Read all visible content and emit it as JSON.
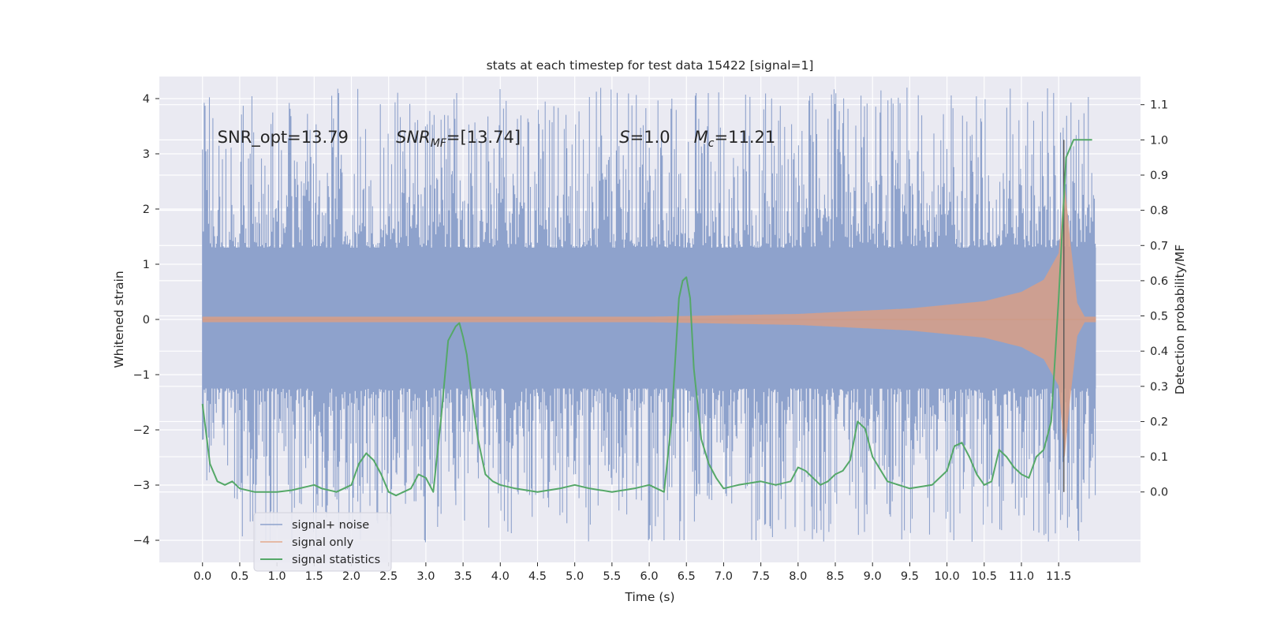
{
  "chart_data": {
    "type": "line",
    "title": "stats at each timestep for test data 15422 [signal=1]",
    "xlabel": "Time (s)",
    "ylabel": "Whitened strain",
    "ylabel_right": "Detection probability/MF",
    "xlim": [
      -0.58,
      12.6
    ],
    "ylim": [
      -4.4,
      4.4
    ],
    "ylim_right": [
      -0.2,
      1.18
    ],
    "x_ticks": [
      0.0,
      0.5,
      1.0,
      1.5,
      2.0,
      2.5,
      3.0,
      3.5,
      4.0,
      4.5,
      5.0,
      5.5,
      6.0,
      6.5,
      7.0,
      7.5,
      8.0,
      8.5,
      9.0,
      9.5,
      10.0,
      10.5,
      11.0,
      11.5
    ],
    "x_tick_labels": [
      "0.0",
      "0.5",
      "1.0",
      "1.5",
      "2.0",
      "2.5",
      "3.0",
      "3.5",
      "4.0",
      "4.5",
      "5.0",
      "5.5",
      "6.0",
      "6.5",
      "7.0",
      "7.5",
      "8.0",
      "8.5",
      "9.0",
      "9.5",
      "10.0",
      "10.5",
      "11.0",
      "11.5"
    ],
    "y_ticks": [
      -4,
      -3,
      -2,
      -1,
      0,
      1,
      2,
      3,
      4
    ],
    "y_tick_labels": [
      "−4",
      "−3",
      "−2",
      "−1",
      "0",
      "1",
      "2",
      "3",
      "4"
    ],
    "y_right_ticks": [
      0.0,
      0.1,
      0.2,
      0.3,
      0.4,
      0.5,
      0.6,
      0.7,
      0.8,
      0.9,
      1.0,
      1.1
    ],
    "y_right_tick_labels": [
      "0.0",
      "0.1",
      "0.2",
      "0.3",
      "0.4",
      "0.5",
      "0.6",
      "0.7",
      "0.8",
      "0.9",
      "1.0",
      "1.1"
    ],
    "grid": true,
    "legend_position": "lower-left",
    "annotations": [
      {
        "text": "SNR_opt=13.79",
        "x": 0.2,
        "y": 3.2
      },
      {
        "text": "SNR_MF=[13.74]",
        "x": 2.6,
        "y": 3.2
      },
      {
        "text": "S=1.0",
        "x": 5.6,
        "y": 3.2
      },
      {
        "text": "M_c=11.21",
        "x": 6.6,
        "y": 3.2
      }
    ],
    "vline": {
      "x": 11.57,
      "y_right_range": [
        0.0,
        1.0
      ]
    },
    "series": [
      {
        "name": "signal+ noise",
        "axis": "left",
        "color": "#8ea2cc",
        "kind": "strain",
        "x_range": [
          0.0,
          12.0
        ],
        "core_band": [
          -1.25,
          1.3
        ],
        "peak_range": [
          -4.0,
          4.1
        ]
      },
      {
        "name": "signal only",
        "axis": "left",
        "color": "#dd8452",
        "kind": "chirp",
        "x_range": [
          0.0,
          12.0
        ],
        "envelope": [
          [
            0.0,
            0.05
          ],
          [
            6.0,
            0.05
          ],
          [
            8.0,
            0.1
          ],
          [
            9.5,
            0.2
          ],
          [
            10.5,
            0.33
          ],
          [
            11.0,
            0.5
          ],
          [
            11.3,
            0.72
          ],
          [
            11.5,
            1.2
          ],
          [
            11.58,
            2.5
          ],
          [
            11.65,
            1.5
          ],
          [
            11.75,
            0.3
          ],
          [
            11.85,
            0.05
          ],
          [
            12.0,
            0.05
          ]
        ]
      },
      {
        "name": "signal statistics",
        "axis": "right",
        "color": "#55a868",
        "kind": "line",
        "x": [
          0.0,
          0.1,
          0.2,
          0.3,
          0.4,
          0.5,
          0.7,
          1.0,
          1.2,
          1.5,
          1.6,
          1.8,
          2.0,
          2.1,
          2.2,
          2.3,
          2.4,
          2.5,
          2.6,
          2.7,
          2.8,
          2.9,
          3.0,
          3.1,
          3.2,
          3.3,
          3.4,
          3.45,
          3.5,
          3.55,
          3.6,
          3.7,
          3.8,
          3.9,
          4.0,
          4.2,
          4.5,
          4.8,
          5.0,
          5.2,
          5.5,
          5.8,
          6.0,
          6.1,
          6.2,
          6.3,
          6.4,
          6.45,
          6.5,
          6.55,
          6.6,
          6.7,
          6.8,
          6.9,
          7.0,
          7.2,
          7.5,
          7.7,
          7.9,
          8.0,
          8.1,
          8.3,
          8.4,
          8.5,
          8.6,
          8.7,
          8.8,
          8.9,
          9.0,
          9.2,
          9.5,
          9.8,
          10.0,
          10.1,
          10.2,
          10.3,
          10.4,
          10.5,
          10.6,
          10.7,
          10.8,
          10.9,
          11.0,
          11.1,
          11.2,
          11.3,
          11.4,
          11.5,
          11.6,
          11.7,
          11.8,
          11.9,
          11.95
        ],
        "y": [
          0.25,
          0.08,
          0.03,
          0.02,
          0.03,
          0.01,
          0.0,
          0.0,
          0.005,
          0.02,
          0.01,
          0.0,
          0.02,
          0.08,
          0.11,
          0.09,
          0.05,
          0.0,
          -0.01,
          0.0,
          0.01,
          0.05,
          0.04,
          0.0,
          0.2,
          0.43,
          0.47,
          0.48,
          0.44,
          0.39,
          0.3,
          0.15,
          0.05,
          0.03,
          0.02,
          0.01,
          0.0,
          0.01,
          0.02,
          0.01,
          0.0,
          0.01,
          0.02,
          0.01,
          0.0,
          0.2,
          0.55,
          0.6,
          0.61,
          0.55,
          0.35,
          0.15,
          0.08,
          0.04,
          0.01,
          0.02,
          0.03,
          0.02,
          0.03,
          0.07,
          0.06,
          0.02,
          0.03,
          0.05,
          0.06,
          0.09,
          0.2,
          0.18,
          0.1,
          0.03,
          0.01,
          0.02,
          0.06,
          0.13,
          0.14,
          0.1,
          0.05,
          0.02,
          0.03,
          0.12,
          0.1,
          0.07,
          0.05,
          0.04,
          0.1,
          0.12,
          0.2,
          0.55,
          0.95,
          1.0,
          1.0,
          1.0,
          1.0
        ]
      }
    ]
  }
}
